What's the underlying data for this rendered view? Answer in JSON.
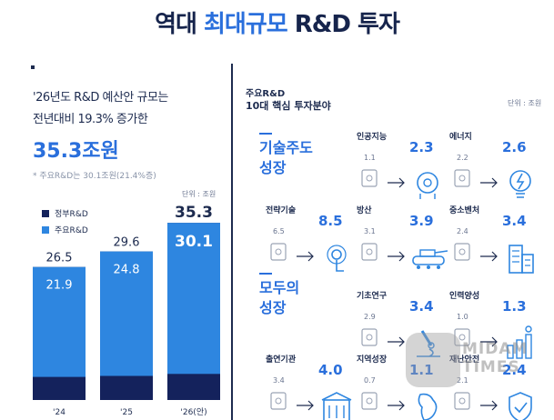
{
  "title": {
    "prefix": "역대 ",
    "highlight": "최대규모",
    "suffix": " R&D 투자"
  },
  "left": {
    "line1": "'26년도 R&D 예산안 규모는",
    "line2": "전년대비 19.3% 증가한",
    "total": "35.3조원",
    "note": "* 주요R&D는 30.1조원(21.4%증)",
    "unit": "단위 : 조원"
  },
  "chart_data": {
    "type": "bar",
    "categories": [
      "'24",
      "'25",
      "'26(안)"
    ],
    "series": [
      {
        "name": "정부R&D",
        "values": [
          26.5,
          29.6,
          35.3
        ]
      },
      {
        "name": "주요R&D",
        "values": [
          21.9,
          24.8,
          30.1
        ]
      }
    ],
    "colors": {
      "gov": "#14225c",
      "major": "#2e86e0"
    },
    "ylim": [
      0,
      38
    ]
  },
  "right": {
    "head1": "주요R&D",
    "head2": "10대 핵심 투자분야",
    "unit": "단위 : 조원",
    "group1": [
      "기술주도",
      "성장"
    ],
    "group2": [
      "모두의",
      "성장"
    ],
    "cards": [
      {
        "name": "인공지능",
        "old": "1.1",
        "new": "2.3",
        "icon": "ai-head-icon"
      },
      {
        "name": "에너지",
        "old": "2.2",
        "new": "2.6",
        "icon": "energy-bulb-icon"
      },
      {
        "name": "전략기술",
        "old": "6.5",
        "new": "8.5",
        "icon": "touch-tech-icon"
      },
      {
        "name": "방산",
        "old": "3.1",
        "new": "3.9",
        "icon": "tank-icon"
      },
      {
        "name": "중소벤처",
        "old": "2.4",
        "new": "3.4",
        "icon": "building-icon"
      },
      {
        "name": "기초연구",
        "old": "2.9",
        "new": "3.4",
        "icon": "microscope-icon"
      },
      {
        "name": "인력양성",
        "old": "1.0",
        "new": "1.3",
        "icon": "people-growth-icon"
      },
      {
        "name": "출연기관",
        "old": "3.4",
        "new": "4.0",
        "icon": "institute-building-icon"
      },
      {
        "name": "지역성장",
        "old": "0.7",
        "new": "1.1",
        "icon": "korea-map-icon"
      },
      {
        "name": "재난안전",
        "old": "2.1",
        "new": "2.4",
        "icon": "safety-shield-icon"
      }
    ]
  },
  "watermark": {
    "line1": "MIDAM",
    "line2": "TIMES"
  }
}
